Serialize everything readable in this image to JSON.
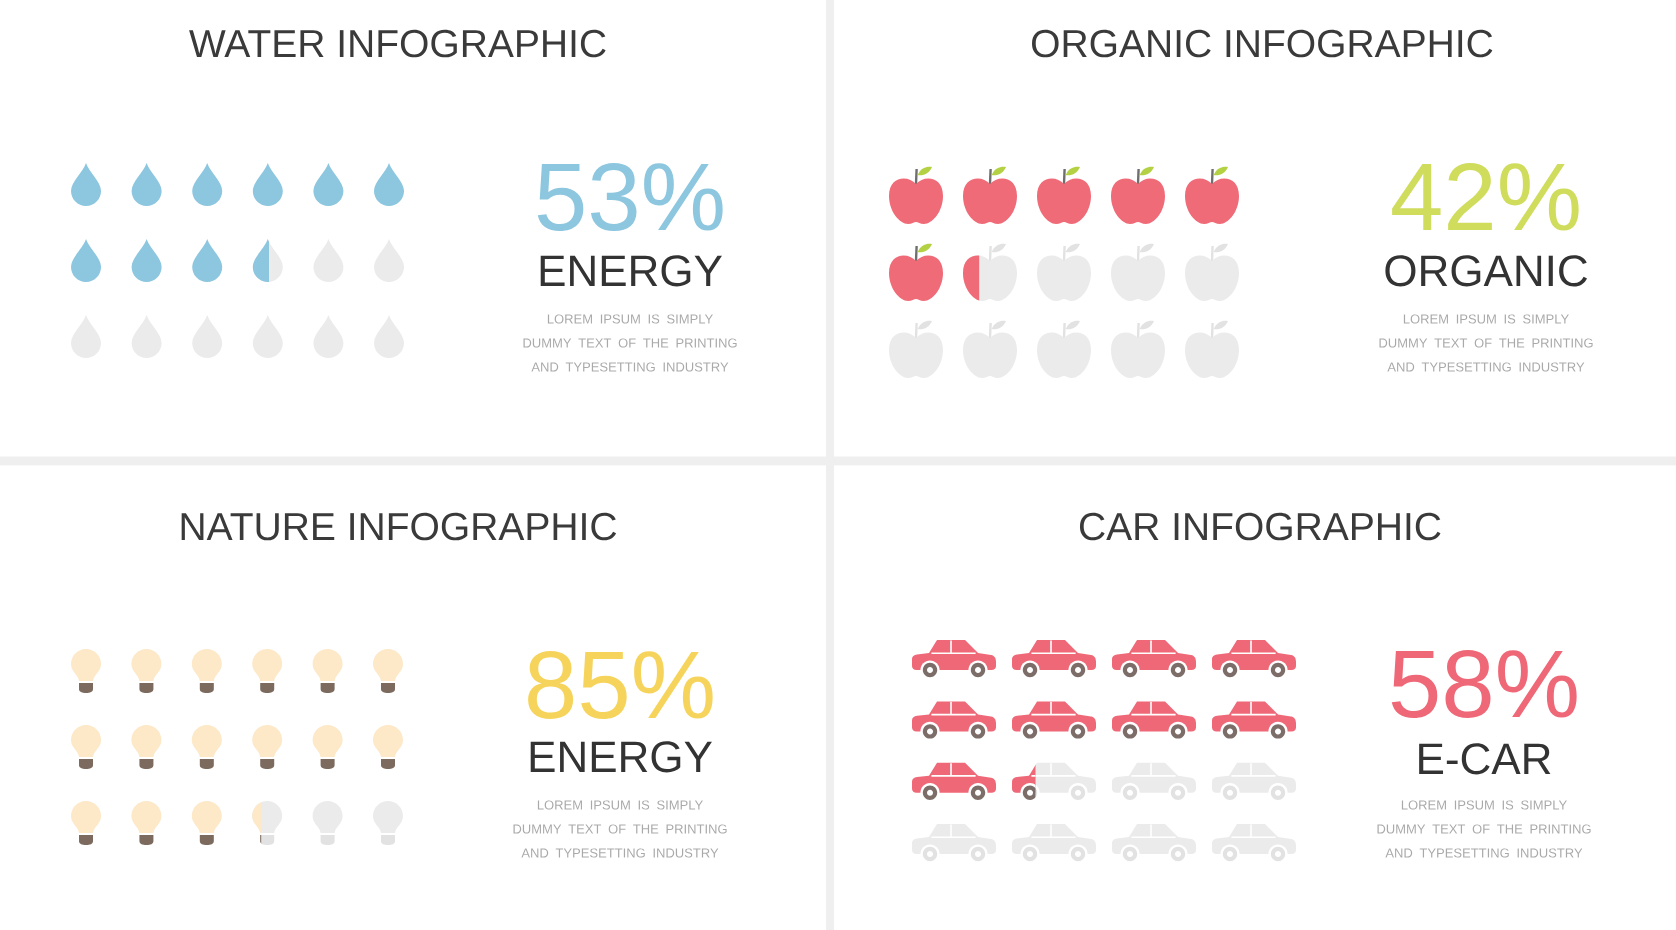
{
  "chart_data": [
    {
      "type": "other",
      "title": "WATER INFOGRAPHIC",
      "categories": [
        "ENERGY"
      ],
      "values": [
        53
      ],
      "value_labels": [
        "53%"
      ],
      "colors": [
        "#8cc6df"
      ],
      "annotations": [
        "LOREM IPSUM IS SIMPLY DUMMY TEXT OF THE PRINTING AND TYPESETTING INDUSTRY"
      ]
    },
    {
      "type": "other",
      "title": "ORGANIC INFOGRAPHIC",
      "categories": [
        "ORGANIC"
      ],
      "values": [
        42
      ],
      "value_labels": [
        "42%"
      ],
      "colors": [
        "#f06b78"
      ],
      "annotations": [
        "LOREM IPSUM IS SIMPLY DUMMY TEXT OF THE PRINTING AND TYPESETTING INDUSTRY"
      ]
    },
    {
      "type": "other",
      "title": "NATURE INFOGRAPHIC",
      "categories": [
        "ENERGY"
      ],
      "values": [
        85
      ],
      "value_labels": [
        "85%"
      ],
      "colors": [
        "#fde8c8"
      ],
      "annotations": [
        "LOREM IPSUM IS SIMPLY DUMMY TEXT OF THE PRINTING AND TYPESETTING INDUSTRY"
      ]
    },
    {
      "type": "other",
      "title": "CAR INFOGRAPHIC",
      "categories": [
        "E-CAR"
      ],
      "values": [
        58
      ],
      "value_labels": [
        "58%"
      ],
      "colors": [
        "#ef6877"
      ],
      "annotations": [
        "LOREM IPSUM IS SIMPLY DUMMY TEXT OF THE PRINTING AND TYPESETTING INDUSTRY"
      ]
    }
  ]
}
